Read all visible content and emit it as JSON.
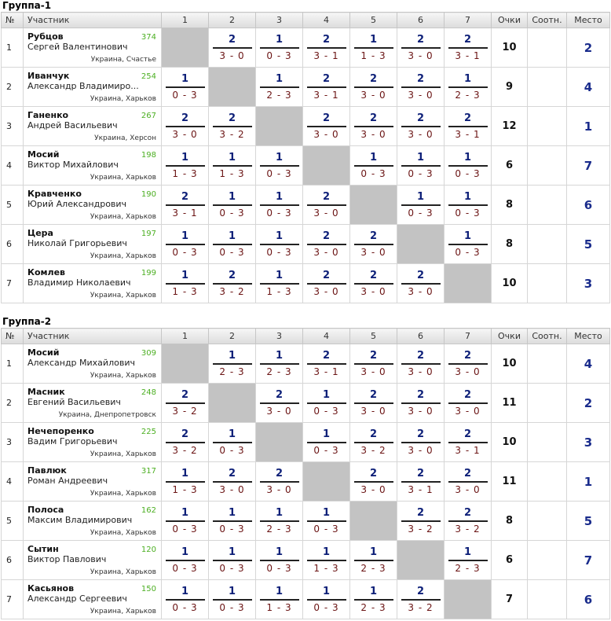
{
  "headers": [
    "№",
    "Участник",
    "1",
    "2",
    "3",
    "4",
    "5",
    "6",
    "7",
    "Очки",
    "Соотн.",
    "Место"
  ],
  "groups": [
    {
      "title": "Группа-1",
      "players": [
        {
          "num": "1",
          "surname": "Рубцов",
          "rating": "374",
          "first": "Сергей Валентинович",
          "location": "Украина, Счастье",
          "results": [
            null,
            {
              "p": "2",
              "s": "3 - 0"
            },
            {
              "p": "1",
              "s": "0 - 3"
            },
            {
              "p": "2",
              "s": "3 - 1"
            },
            {
              "p": "1",
              "s": "1 - 3"
            },
            {
              "p": "2",
              "s": "3 - 0"
            },
            {
              "p": "2",
              "s": "3 - 1"
            }
          ],
          "points": "10",
          "ratio": "",
          "place": "2"
        },
        {
          "num": "2",
          "surname": "Иванчук",
          "rating": "254",
          "first": "Александр Владимиро...",
          "location": "Украина, Харьков",
          "results": [
            {
              "p": "1",
              "s": "0 - 3"
            },
            null,
            {
              "p": "1",
              "s": "2 - 3"
            },
            {
              "p": "2",
              "s": "3 - 1"
            },
            {
              "p": "2",
              "s": "3 - 0"
            },
            {
              "p": "2",
              "s": "3 - 0"
            },
            {
              "p": "1",
              "s": "2 - 3"
            }
          ],
          "points": "9",
          "ratio": "",
          "place": "4"
        },
        {
          "num": "3",
          "surname": "Ганенко",
          "rating": "267",
          "first": "Андрей Васильевич",
          "location": "Украина, Херсон",
          "results": [
            {
              "p": "2",
              "s": "3 - 0"
            },
            {
              "p": "2",
              "s": "3 - 2"
            },
            null,
            {
              "p": "2",
              "s": "3 - 0"
            },
            {
              "p": "2",
              "s": "3 - 0"
            },
            {
              "p": "2",
              "s": "3 - 0"
            },
            {
              "p": "2",
              "s": "3 - 1"
            }
          ],
          "points": "12",
          "ratio": "",
          "place": "1"
        },
        {
          "num": "4",
          "surname": "Мосий",
          "rating": "198",
          "first": "Виктор Михайлович",
          "location": "Украина, Харьков",
          "results": [
            {
              "p": "1",
              "s": "1 - 3"
            },
            {
              "p": "1",
              "s": "1 - 3"
            },
            {
              "p": "1",
              "s": "0 - 3"
            },
            null,
            {
              "p": "1",
              "s": "0 - 3"
            },
            {
              "p": "1",
              "s": "0 - 3"
            },
            {
              "p": "1",
              "s": "0 - 3"
            }
          ],
          "points": "6",
          "ratio": "",
          "place": "7"
        },
        {
          "num": "5",
          "surname": "Кравченко",
          "rating": "190",
          "first": "Юрий Александрович",
          "location": "Украина, Харьков",
          "results": [
            {
              "p": "2",
              "s": "3 - 1"
            },
            {
              "p": "1",
              "s": "0 - 3"
            },
            {
              "p": "1",
              "s": "0 - 3"
            },
            {
              "p": "2",
              "s": "3 - 0"
            },
            null,
            {
              "p": "1",
              "s": "0 - 3"
            },
            {
              "p": "1",
              "s": "0 - 3"
            }
          ],
          "points": "8",
          "ratio": "",
          "place": "6"
        },
        {
          "num": "6",
          "surname": "Цера",
          "rating": "197",
          "first": "Николай Григорьевич",
          "location": "Украина, Харьков",
          "results": [
            {
              "p": "1",
              "s": "0 - 3"
            },
            {
              "p": "1",
              "s": "0 - 3"
            },
            {
              "p": "1",
              "s": "0 - 3"
            },
            {
              "p": "2",
              "s": "3 - 0"
            },
            {
              "p": "2",
              "s": "3 - 0"
            },
            null,
            {
              "p": "1",
              "s": "0 - 3"
            }
          ],
          "points": "8",
          "ratio": "",
          "place": "5"
        },
        {
          "num": "7",
          "surname": "Комлев",
          "rating": "199",
          "first": "Владимир Николаевич",
          "location": "Украина, Харьков",
          "results": [
            {
              "p": "1",
              "s": "1 - 3"
            },
            {
              "p": "2",
              "s": "3 - 2"
            },
            {
              "p": "1",
              "s": "1 - 3"
            },
            {
              "p": "2",
              "s": "3 - 0"
            },
            {
              "p": "2",
              "s": "3 - 0"
            },
            {
              "p": "2",
              "s": "3 - 0"
            },
            null
          ],
          "points": "10",
          "ratio": "",
          "place": "3"
        }
      ]
    },
    {
      "title": "Группа-2",
      "players": [
        {
          "num": "1",
          "surname": "Мосий",
          "rating": "309",
          "first": "Александр Михайлович",
          "location": "Украина, Харьков",
          "results": [
            null,
            {
              "p": "1",
              "s": "2 - 3"
            },
            {
              "p": "1",
              "s": "2 - 3"
            },
            {
              "p": "2",
              "s": "3 - 1"
            },
            {
              "p": "2",
              "s": "3 - 0"
            },
            {
              "p": "2",
              "s": "3 - 0"
            },
            {
              "p": "2",
              "s": "3 - 0"
            }
          ],
          "points": "10",
          "ratio": "",
          "place": "4"
        },
        {
          "num": "2",
          "surname": "Масник",
          "rating": "248",
          "first": "Евгений Васильевич",
          "location": "Украина, Днепропетровск",
          "results": [
            {
              "p": "2",
              "s": "3 - 2"
            },
            null,
            {
              "p": "2",
              "s": "3 - 0"
            },
            {
              "p": "1",
              "s": "0 - 3"
            },
            {
              "p": "2",
              "s": "3 - 0"
            },
            {
              "p": "2",
              "s": "3 - 0"
            },
            {
              "p": "2",
              "s": "3 - 0"
            }
          ],
          "points": "11",
          "ratio": "",
          "place": "2"
        },
        {
          "num": "3",
          "surname": "Нечепоренко",
          "rating": "225",
          "first": "Вадим Григорьевич",
          "location": "Украина, Харьков",
          "results": [
            {
              "p": "2",
              "s": "3 - 2"
            },
            {
              "p": "1",
              "s": "0 - 3"
            },
            null,
            {
              "p": "1",
              "s": "0 - 3"
            },
            {
              "p": "2",
              "s": "3 - 2"
            },
            {
              "p": "2",
              "s": "3 - 0"
            },
            {
              "p": "2",
              "s": "3 - 1"
            }
          ],
          "points": "10",
          "ratio": "",
          "place": "3"
        },
        {
          "num": "4",
          "surname": "Павлюк",
          "rating": "317",
          "first": "Роман Андреевич",
          "location": "Украина, Харьков",
          "results": [
            {
              "p": "1",
              "s": "1 - 3"
            },
            {
              "p": "2",
              "s": "3 - 0"
            },
            {
              "p": "2",
              "s": "3 - 0"
            },
            null,
            {
              "p": "2",
              "s": "3 - 0"
            },
            {
              "p": "2",
              "s": "3 - 1"
            },
            {
              "p": "2",
              "s": "3 - 0"
            }
          ],
          "points": "11",
          "ratio": "",
          "place": "1"
        },
        {
          "num": "5",
          "surname": "Полоса",
          "rating": "162",
          "first": "Максим Владимирович",
          "location": "Украина, Харьков",
          "results": [
            {
              "p": "1",
              "s": "0 - 3"
            },
            {
              "p": "1",
              "s": "0 - 3"
            },
            {
              "p": "1",
              "s": "2 - 3"
            },
            {
              "p": "1",
              "s": "0 - 3"
            },
            null,
            {
              "p": "2",
              "s": "3 - 2"
            },
            {
              "p": "2",
              "s": "3 - 2"
            }
          ],
          "points": "8",
          "ratio": "",
          "place": "5"
        },
        {
          "num": "6",
          "surname": "Сытин",
          "rating": "120",
          "first": "Виктор Павлович",
          "location": "Украина, Харьков",
          "results": [
            {
              "p": "1",
              "s": "0 - 3"
            },
            {
              "p": "1",
              "s": "0 - 3"
            },
            {
              "p": "1",
              "s": "0 - 3"
            },
            {
              "p": "1",
              "s": "1 - 3"
            },
            {
              "p": "1",
              "s": "2 - 3"
            },
            null,
            {
              "p": "1",
              "s": "2 - 3"
            }
          ],
          "points": "6",
          "ratio": "",
          "place": "7"
        },
        {
          "num": "7",
          "surname": "Касьянов",
          "rating": "150",
          "first": "Александр Сергеевич",
          "location": "Украина, Харьков",
          "results": [
            {
              "p": "1",
              "s": "0 - 3"
            },
            {
              "p": "1",
              "s": "0 - 3"
            },
            {
              "p": "1",
              "s": "1 - 3"
            },
            {
              "p": "1",
              "s": "0 - 3"
            },
            {
              "p": "1",
              "s": "2 - 3"
            },
            {
              "p": "2",
              "s": "3 - 2"
            },
            null
          ],
          "points": "7",
          "ratio": "",
          "place": "6"
        }
      ]
    }
  ]
}
